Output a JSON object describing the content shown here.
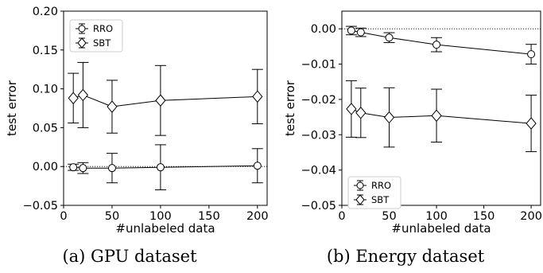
{
  "chart_data": [
    {
      "type": "scatter",
      "xlabel": "#unlabeled data",
      "ylabel": "test error",
      "xlim": [
        0,
        210
      ],
      "ylim": [
        -0.05,
        0.2
      ],
      "xticks": [
        0,
        50,
        100,
        150,
        200
      ],
      "xtick_labels": [
        "0",
        "50",
        "100",
        "150",
        "200"
      ],
      "yticks": [
        -0.05,
        0.0,
        0.05,
        0.1,
        0.15,
        0.2
      ],
      "ytick_labels": [
        "−0.05",
        "0.00",
        "0.05",
        "0.10",
        "0.15",
        "0.20"
      ],
      "reference_line": 0,
      "legend_position": "top-left",
      "caption": "(a) GPU dataset",
      "series": [
        {
          "name": "RRO",
          "marker": "circle",
          "x": [
            10,
            20,
            50,
            100,
            200
          ],
          "y": [
            -0.001,
            -0.002,
            -0.002,
            -0.001,
            0.001
          ],
          "err": [
            0.004,
            0.007,
            0.019,
            0.029,
            0.022
          ]
        },
        {
          "name": "SBT",
          "marker": "diamond",
          "x": [
            10,
            20,
            50,
            100,
            200
          ],
          "y": [
            0.088,
            0.092,
            0.077,
            0.085,
            0.09
          ],
          "err": [
            0.032,
            0.042,
            0.034,
            0.045,
            0.035
          ]
        }
      ]
    },
    {
      "type": "scatter",
      "xlabel": "#unlabeled data",
      "ylabel": "test error",
      "xlim": [
        0,
        210
      ],
      "ylim": [
        -0.05,
        0.005
      ],
      "xticks": [
        0,
        50,
        100,
        150,
        200
      ],
      "xtick_labels": [
        "0",
        "50",
        "100",
        "150",
        "200"
      ],
      "yticks": [
        -0.05,
        -0.04,
        -0.03,
        -0.02,
        -0.01,
        0.0
      ],
      "ytick_labels": [
        "−0.05",
        "−0.04",
        "−0.03",
        "−0.02",
        "−0.01",
        "0.00"
      ],
      "reference_line": 0,
      "legend_position": "bottom-left",
      "caption": "(b) Energy dataset",
      "series": [
        {
          "name": "RRO",
          "marker": "circle",
          "x": [
            10,
            20,
            50,
            100,
            200
          ],
          "y": [
            -0.0005,
            -0.001,
            -0.0025,
            -0.0045,
            -0.0072
          ],
          "err": [
            0.0012,
            0.0012,
            0.0014,
            0.002,
            0.0028
          ]
        },
        {
          "name": "SBT",
          "marker": "diamond",
          "x": [
            10,
            20,
            50,
            100,
            200
          ],
          "y": [
            -0.0227,
            -0.0238,
            -0.0251,
            -0.0246,
            -0.0268
          ],
          "err": [
            0.008,
            0.007,
            0.0084,
            0.0075,
            0.008
          ]
        }
      ]
    }
  ]
}
